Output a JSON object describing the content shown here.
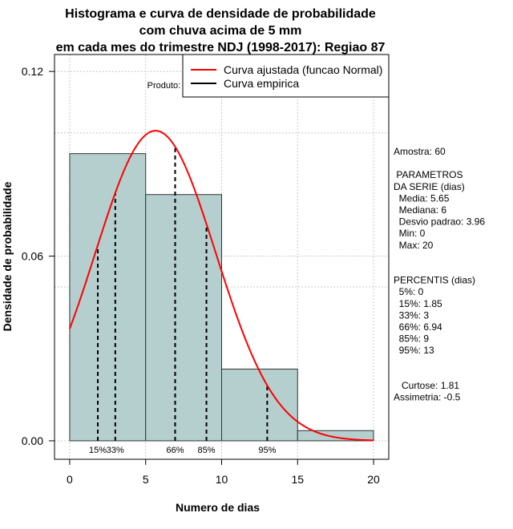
{
  "title_lines": [
    "Histograma e curva de densidade de probabilidade",
    "com chuva acima de 5 mm",
    "em cada mes do trimestre NDJ (1998-2017): Regiao 87"
  ],
  "chart_data": {
    "type": "histogram",
    "xlabel": "Numero de dias",
    "ylabel": "Densidade de probabilidade",
    "xlim": [
      -1,
      21
    ],
    "ylim": [
      -0.006,
      0.1255
    ],
    "x_ticks": [
      0,
      5,
      10,
      15,
      20
    ],
    "x_tick_labels": [
      "0",
      "5",
      "10",
      "15",
      "20"
    ],
    "y_ticks": [
      0.0,
      0.06,
      0.12
    ],
    "y_tick_labels": [
      "0.00",
      "0.06",
      "0.12"
    ],
    "grid": true,
    "grid_y_extra": [
      0.1,
      0.05
    ],
    "bins": [
      {
        "from": 0,
        "to": 5,
        "density": 0.0933
      },
      {
        "from": 5,
        "to": 10,
        "density": 0.08
      },
      {
        "from": 10,
        "to": 15,
        "density": 0.0233
      },
      {
        "from": 15,
        "to": 20,
        "density": 0.0033
      }
    ],
    "bar_color": "#b5cfcf",
    "normal_curve": {
      "mean": 5.65,
      "sd": 3.96,
      "x_from": 0,
      "x_to": 20,
      "color": "#ff0000"
    },
    "percentiles": [
      {
        "label": "15%",
        "value": 1.85
      },
      {
        "label": "33%",
        "value": 3
      },
      {
        "label": "66%",
        "value": 6.94
      },
      {
        "label": "85%",
        "value": 9
      },
      {
        "label": "95%",
        "value": 13
      }
    ],
    "legend": {
      "position": "top-right",
      "entries": [
        {
          "label": "Curva ajustada (funcao Normal)",
          "color": "#ff0000"
        },
        {
          "label": "Curva empirica",
          "color": "#000000"
        }
      ]
    },
    "annotation": "Produto: CPTEC/INPE"
  },
  "stats_panel": [
    "Amostra: 60",
    "",
    " PARAMETROS",
    "DA SERIE (dias)",
    "  Media: 5.65",
    "  Mediana: 6",
    "  Desvio padrao: 3.96",
    "  Min: 0",
    "  Max: 20",
    "",
    "",
    "PERCENTIS (dias)",
    "  5%: 0",
    "  15%: 1.85",
    "  33%: 3",
    "  66%: 6.94",
    "  85%: 9",
    "  95%: 13",
    "",
    "",
    "   Curtose: 1.81",
    "Assimetria: -0.5"
  ]
}
